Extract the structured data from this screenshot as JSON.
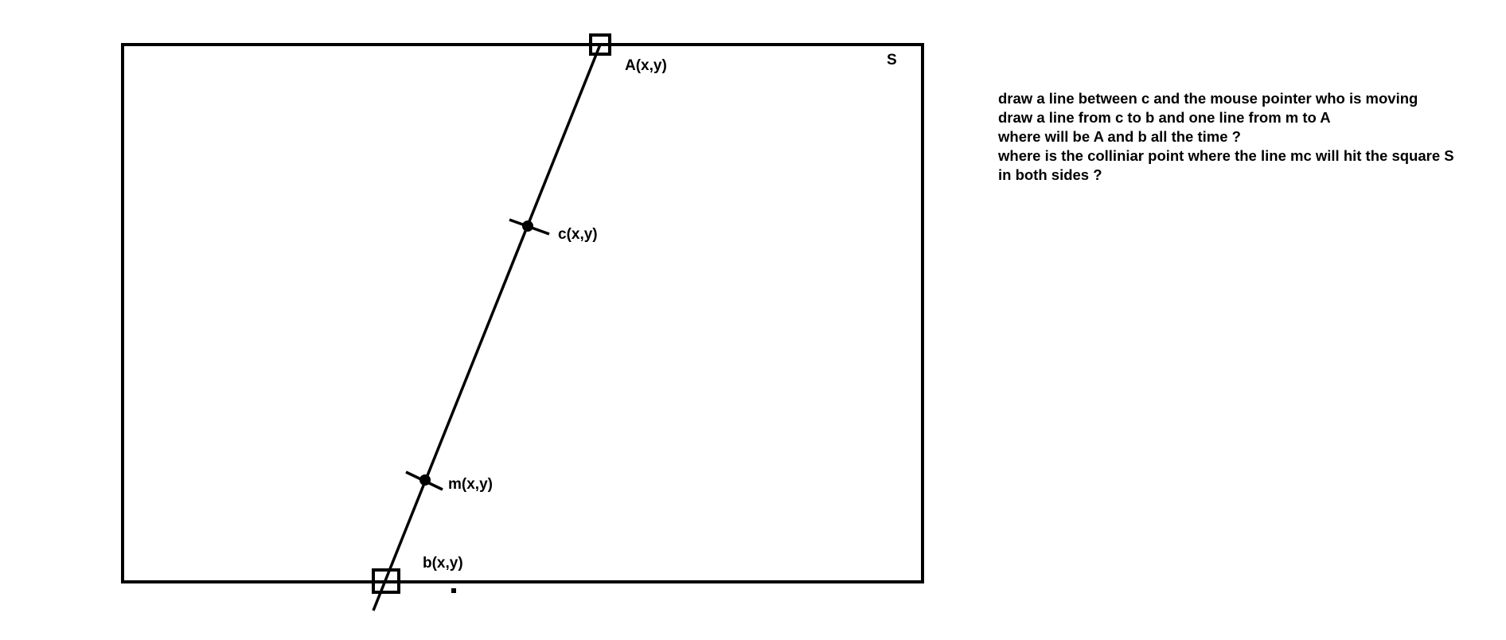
{
  "diagram": {
    "square_label": "S",
    "points": {
      "A": "A(x,y)",
      "c": "c(x,y)",
      "m": "m(x,y)",
      "b": "b(x,y)"
    },
    "notes": [
      "draw a line between c and the mouse pointer who is moving",
      "draw a line from c to b and one line from m to A",
      "where will be A and b all the time ?",
      "where is the colliniar point where the line mc will hit the square S",
      "in both sides ?"
    ]
  }
}
